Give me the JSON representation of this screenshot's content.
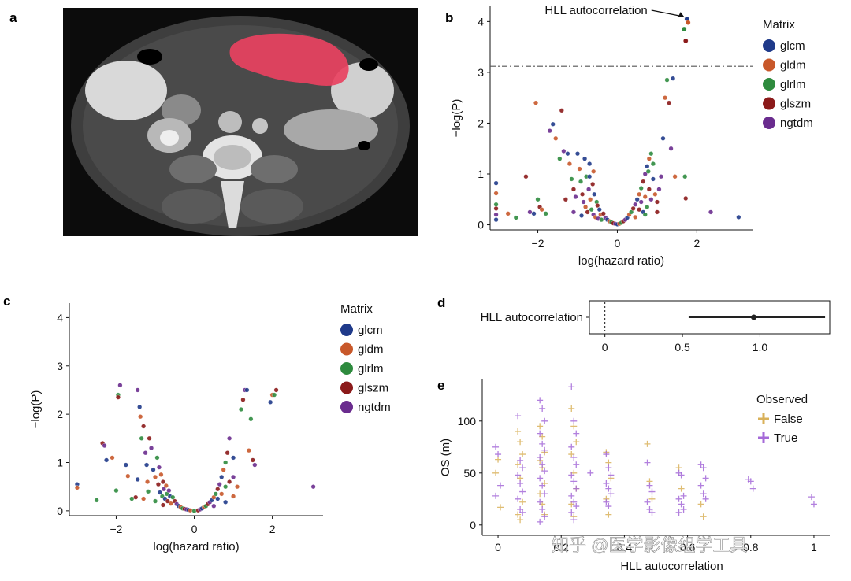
{
  "panel_labels": [
    "a",
    "b",
    "c",
    "d",
    "e"
  ],
  "watermark": "知乎 @医学影像组学工具",
  "matrix_legend": {
    "title": "Matrix",
    "items": [
      {
        "label": "glcm",
        "color": "#1f3a8a"
      },
      {
        "label": "gldm",
        "color": "#c8582a"
      },
      {
        "label": "glrlm",
        "color": "#2e8b3e"
      },
      {
        "label": "glszm",
        "color": "#8b1a1a"
      },
      {
        "label": "ngtdm",
        "color": "#6a2c8e"
      }
    ]
  },
  "observed_legend": {
    "title": "Observed",
    "items": [
      {
        "label": "False",
        "color": "#d9b15a"
      },
      {
        "label": "True",
        "color": "#a56ad8"
      }
    ]
  },
  "ct_image": {
    "mask_color": "#e8415f"
  },
  "chart_data": [
    {
      "panel": "b",
      "type": "scatter",
      "xlabel": "log(hazard ratio)",
      "ylabel": "−log(P)",
      "xlim": [
        -3.2,
        3.4
      ],
      "ylim": [
        -0.1,
        4.3
      ],
      "xticks": [
        "−2",
        "0",
        "2"
      ],
      "xtick_values": [
        -2,
        0,
        2
      ],
      "yticks": [
        "0",
        "1",
        "2",
        "3",
        "4"
      ],
      "ytick_values": [
        0,
        1,
        2,
        3,
        4
      ],
      "threshold_y": 3.12,
      "annotation": "HLL autocorrelation",
      "annotation_target": [
        1.75,
        4.05
      ],
      "highlight": [
        [
          1.75,
          4.05
        ],
        [
          1.78,
          3.98
        ],
        [
          1.68,
          3.85
        ],
        [
          1.72,
          3.62
        ]
      ],
      "legend": "right",
      "points": [
        [
          -3.05,
          0.82
        ],
        [
          -3.05,
          0.62
        ],
        [
          -3.05,
          0.4
        ],
        [
          -3.05,
          0.32
        ],
        [
          -3.05,
          0.2
        ],
        [
          -3.05,
          0.1
        ],
        [
          -2.75,
          0.22
        ],
        [
          -2.55,
          0.14
        ],
        [
          -2.3,
          0.95
        ],
        [
          -2.2,
          0.25
        ],
        [
          -2.1,
          0.22
        ],
        [
          -2.05,
          2.4
        ],
        [
          -2.0,
          0.5
        ],
        [
          -1.95,
          0.35
        ],
        [
          -1.7,
          1.85
        ],
        [
          -1.62,
          1.98
        ],
        [
          -1.55,
          1.7
        ],
        [
          -1.45,
          1.3
        ],
        [
          -1.4,
          2.25
        ],
        [
          -1.35,
          1.45
        ],
        [
          -1.25,
          1.4
        ],
        [
          -1.2,
          1.2
        ],
        [
          -1.15,
          0.9
        ],
        [
          -1.1,
          0.7
        ],
        [
          -1.05,
          0.55
        ],
        [
          -1.0,
          1.4
        ],
        [
          -0.95,
          1.1
        ],
        [
          -0.92,
          0.85
        ],
        [
          -0.88,
          0.6
        ],
        [
          -0.85,
          0.45
        ],
        [
          -0.82,
          1.3
        ],
        [
          -0.8,
          0.35
        ],
        [
          -0.78,
          0.95
        ],
        [
          -0.75,
          0.25
        ],
        [
          -0.72,
          0.7
        ],
        [
          -0.7,
          1.2
        ],
        [
          -0.68,
          0.5
        ],
        [
          -0.65,
          0.3
        ],
        [
          -0.62,
          0.8
        ],
        [
          -0.6,
          0.2
        ],
        [
          -0.58,
          0.6
        ],
        [
          -0.55,
          0.15
        ],
        [
          -0.52,
          0.45
        ],
        [
          -0.5,
          0.38
        ],
        [
          -0.48,
          0.12
        ],
        [
          -0.45,
          0.3
        ],
        [
          -0.42,
          0.2
        ],
        [
          -0.4,
          0.1
        ],
        [
          -0.35,
          0.22
        ],
        [
          -0.3,
          0.14
        ],
        [
          -0.25,
          0.1
        ],
        [
          -0.2,
          0.07
        ],
        [
          -0.15,
          0.05
        ],
        [
          -0.1,
          0.03
        ],
        [
          -0.05,
          0.02
        ],
        [
          0.0,
          0.01
        ],
        [
          0.05,
          0.02
        ],
        [
          0.1,
          0.04
        ],
        [
          0.15,
          0.07
        ],
        [
          0.2,
          0.1
        ],
        [
          0.25,
          0.14
        ],
        [
          0.3,
          0.2
        ],
        [
          0.35,
          0.25
        ],
        [
          0.4,
          0.32
        ],
        [
          0.45,
          0.4
        ],
        [
          0.5,
          0.5
        ],
        [
          0.55,
          0.6
        ],
        [
          0.6,
          0.72
        ],
        [
          0.65,
          0.85
        ],
        [
          0.7,
          1.0
        ],
        [
          0.75,
          1.15
        ],
        [
          0.8,
          1.3
        ],
        [
          0.85,
          1.4
        ],
        [
          0.55,
          0.3
        ],
        [
          0.6,
          0.45
        ],
        [
          0.65,
          0.25
        ],
        [
          0.7,
          0.55
        ],
        [
          0.75,
          0.35
        ],
        [
          0.8,
          0.7
        ],
        [
          0.85,
          0.5
        ],
        [
          0.9,
          0.9
        ],
        [
          0.95,
          0.6
        ],
        [
          0.9,
          1.2
        ],
        [
          1.0,
          0.45
        ],
        [
          1.1,
          0.95
        ],
        [
          1.15,
          1.7
        ],
        [
          1.2,
          2.5
        ],
        [
          1.25,
          2.85
        ],
        [
          1.3,
          2.4
        ],
        [
          1.35,
          1.5
        ],
        [
          1.4,
          2.88
        ],
        [
          1.45,
          0.95
        ],
        [
          1.7,
          0.95
        ],
        [
          1.72,
          0.52
        ],
        [
          2.35,
          0.25
        ],
        [
          3.05,
          0.15
        ],
        [
          -1.9,
          0.3
        ],
        [
          -1.8,
          0.22
        ],
        [
          -1.3,
          0.5
        ],
        [
          -1.1,
          0.25
        ],
        [
          -0.9,
          0.18
        ],
        [
          0.45,
          0.15
        ],
        [
          0.7,
          0.2
        ],
        [
          1.0,
          0.25
        ],
        [
          1.05,
          0.7
        ],
        [
          -0.7,
          0.95
        ],
        [
          -0.6,
          1.05
        ],
        [
          0.78,
          1.05
        ]
      ]
    },
    {
      "panel": "c",
      "type": "scatter",
      "xlabel": "log(hazard ratio)",
      "ylabel": "−log(P)",
      "xlim": [
        -3.2,
        3.3
      ],
      "ylim": [
        -0.1,
        4.3
      ],
      "xticks": [
        "−2",
        "0",
        "2"
      ],
      "xtick_values": [
        -2,
        0,
        2
      ],
      "yticks": [
        "0",
        "1",
        "2",
        "3",
        "4"
      ],
      "ytick_values": [
        0,
        1,
        2,
        3,
        4
      ],
      "legend": "right",
      "points": [
        [
          -3.0,
          0.55
        ],
        [
          -3.0,
          0.48
        ],
        [
          -2.5,
          0.22
        ],
        [
          -2.35,
          1.4
        ],
        [
          -2.3,
          1.35
        ],
        [
          -2.25,
          1.05
        ],
        [
          -2.1,
          1.1
        ],
        [
          -1.95,
          2.4
        ],
        [
          -1.95,
          2.35
        ],
        [
          -1.9,
          2.6
        ],
        [
          -1.75,
          0.95
        ],
        [
          -1.7,
          0.72
        ],
        [
          -1.6,
          0.25
        ],
        [
          -1.5,
          0.28
        ],
        [
          -1.45,
          2.5
        ],
        [
          -1.4,
          2.15
        ],
        [
          -1.38,
          1.95
        ],
        [
          -1.35,
          1.5
        ],
        [
          -1.3,
          1.75
        ],
        [
          -1.25,
          1.2
        ],
        [
          -1.22,
          0.95
        ],
        [
          -1.2,
          0.6
        ],
        [
          -1.18,
          0.4
        ],
        [
          -1.15,
          1.5
        ],
        [
          -1.1,
          1.3
        ],
        [
          -1.05,
          0.85
        ],
        [
          -1.0,
          0.7
        ],
        [
          -0.95,
          1.1
        ],
        [
          -0.92,
          0.55
        ],
        [
          -0.9,
          0.9
        ],
        [
          -0.88,
          0.38
        ],
        [
          -0.85,
          0.75
        ],
        [
          -0.82,
          0.3
        ],
        [
          -0.8,
          0.6
        ],
        [
          -0.78,
          0.45
        ],
        [
          -0.75,
          0.25
        ],
        [
          -0.72,
          0.52
        ],
        [
          -0.7,
          0.35
        ],
        [
          -0.68,
          0.2
        ],
        [
          -0.65,
          0.42
        ],
        [
          -0.62,
          0.3
        ],
        [
          -0.6,
          0.15
        ],
        [
          -0.55,
          0.28
        ],
        [
          -0.5,
          0.2
        ],
        [
          -0.45,
          0.14
        ],
        [
          -0.4,
          0.1
        ],
        [
          -0.35,
          0.08
        ],
        [
          -0.3,
          0.05
        ],
        [
          -0.25,
          0.04
        ],
        [
          -0.2,
          0.03
        ],
        [
          -0.15,
          0.02
        ],
        [
          -0.1,
          0.01
        ],
        [
          0.0,
          0.0
        ],
        [
          0.1,
          0.01
        ],
        [
          0.15,
          0.03
        ],
        [
          0.2,
          0.05
        ],
        [
          0.25,
          0.08
        ],
        [
          0.3,
          0.1
        ],
        [
          0.35,
          0.14
        ],
        [
          0.4,
          0.18
        ],
        [
          0.45,
          0.22
        ],
        [
          0.5,
          0.28
        ],
        [
          0.55,
          0.35
        ],
        [
          0.6,
          0.45
        ],
        [
          0.65,
          0.55
        ],
        [
          0.7,
          0.7
        ],
        [
          0.75,
          0.85
        ],
        [
          0.8,
          1.0
        ],
        [
          0.85,
          1.2
        ],
        [
          0.9,
          1.5
        ],
        [
          0.6,
          0.25
        ],
        [
          0.7,
          0.35
        ],
        [
          0.8,
          0.5
        ],
        [
          0.9,
          0.6
        ],
        [
          1.0,
          0.7
        ],
        [
          1.0,
          1.1
        ],
        [
          1.1,
          0.5
        ],
        [
          1.2,
          2.1
        ],
        [
          1.25,
          2.3
        ],
        [
          1.3,
          2.5
        ],
        [
          1.35,
          2.5
        ],
        [
          1.4,
          1.25
        ],
        [
          1.45,
          1.9
        ],
        [
          1.5,
          1.05
        ],
        [
          1.55,
          0.95
        ],
        [
          1.95,
          2.25
        ],
        [
          2.0,
          2.4
        ],
        [
          2.05,
          2.4
        ],
        [
          2.1,
          2.5
        ],
        [
          3.05,
          0.5
        ],
        [
          -1.45,
          0.65
        ],
        [
          -1.3,
          0.25
        ],
        [
          -1.0,
          0.2
        ],
        [
          -0.8,
          0.12
        ],
        [
          0.5,
          0.1
        ],
        [
          0.8,
          0.18
        ],
        [
          1.0,
          0.3
        ],
        [
          -2.0,
          0.42
        ]
      ]
    },
    {
      "panel": "d",
      "type": "forest",
      "label": "HLL autocorrelation",
      "estimate": 0.96,
      "ci": [
        0.54,
        1.42
      ],
      "xlim": [
        -0.1,
        1.45
      ],
      "reference": 0,
      "xticks": [
        "0",
        "0.5",
        "1.0"
      ],
      "xtick_values": [
        0,
        0.5,
        1.0
      ]
    },
    {
      "panel": "e",
      "type": "scatter",
      "xlabel": "HLL autocorrelation",
      "ylabel": "OS (m)",
      "xlim": [
        -0.05,
        1.05
      ],
      "ylim": [
        -10,
        140
      ],
      "xticks": [
        "0",
        "0.2",
        "0.4",
        "0.6",
        "0.8",
        "1"
      ],
      "xtick_values": [
        0,
        0.2,
        0.4,
        0.6,
        0.8,
        1.0
      ],
      "yticks": [
        "0",
        "50",
        "100"
      ],
      "ytick_values": [
        0,
        50,
        100
      ],
      "legend": "top-right",
      "groups": [
        {
          "x": 0.0,
          "false": [
            50,
            63,
            17
          ],
          "true": [
            75,
            68,
            38,
            28
          ]
        },
        {
          "x": 0.07,
          "false": [
            90,
            80,
            68,
            58,
            45,
            22,
            10,
            5
          ],
          "true": [
            105,
            62,
            55,
            48,
            40,
            32,
            25,
            15,
            12
          ]
        },
        {
          "x": 0.14,
          "false": [
            95,
            85,
            70,
            62,
            55,
            40,
            30,
            20,
            10
          ],
          "true": [
            120,
            112,
            100,
            88,
            78,
            72,
            65,
            58,
            52,
            45,
            38,
            30,
            22,
            15,
            8,
            3
          ]
        },
        {
          "x": 0.24,
          "false": [
            112,
            95,
            80,
            68,
            50,
            35,
            20,
            8
          ],
          "true": [
            133,
            100,
            88,
            75,
            65,
            58,
            48,
            42,
            35,
            28,
            22,
            18,
            12,
            5
          ]
        },
        {
          "x": 0.3,
          "false": [],
          "true": [
            50
          ]
        },
        {
          "x": 0.35,
          "false": [
            70,
            60,
            45,
            25,
            10
          ],
          "true": [
            68,
            55,
            48,
            40,
            35,
            30,
            22,
            18
          ]
        },
        {
          "x": 0.48,
          "false": [
            78,
            42,
            25
          ],
          "true": [
            60,
            38,
            32,
            22,
            15,
            12
          ]
        },
        {
          "x": 0.58,
          "false": [
            55,
            35
          ],
          "true": [
            50,
            48,
            28,
            25,
            20,
            15,
            12
          ]
        },
        {
          "x": 0.65,
          "false": [
            20,
            8
          ],
          "true": [
            58,
            55,
            45,
            38,
            30,
            25
          ]
        },
        {
          "x": 0.8,
          "false": [],
          "true": [
            44,
            42,
            35
          ]
        },
        {
          "x": 1.0,
          "false": [],
          "true": [
            27,
            20
          ]
        }
      ]
    }
  ]
}
